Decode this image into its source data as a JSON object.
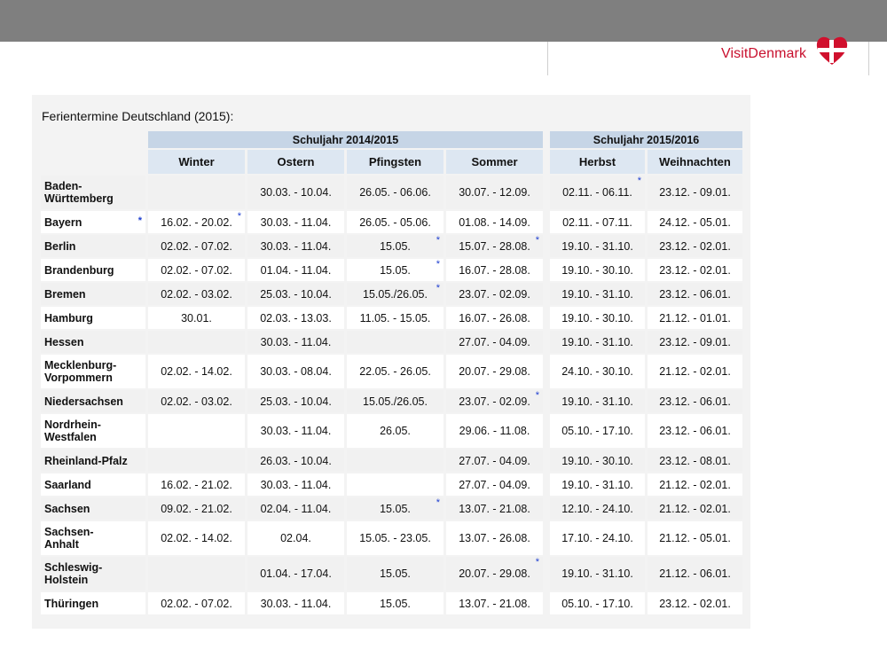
{
  "brand": {
    "name": "VisitDenmark"
  },
  "title": "Ferientermine Deutschland (2015):",
  "year_headers": [
    "Schuljahr 2014/2015",
    "Schuljahr 2015/2016"
  ],
  "columns": [
    "Winter",
    "Ostern",
    "Pfingsten",
    "Sommer",
    "Herbst",
    "Weihnachten"
  ],
  "rows": [
    {
      "state": "Baden-\nWürttemberg",
      "h": 38,
      "cells": [
        "",
        "30.03. - 10.04.",
        "26.05. - 06.06.",
        "30.07. - 12.09.",
        "02.11. - 06.11.",
        "23.12. - 09.01."
      ],
      "stars": [
        false,
        false,
        false,
        false,
        true,
        false
      ]
    },
    {
      "state": "Bayern",
      "h": 25,
      "state_star": true,
      "cells": [
        "16.02. - 20.02.",
        "30.03. - 11.04.",
        "26.05. - 05.06.",
        "01.08. - 14.09.",
        "02.11. - 07.11.",
        "24.12. - 05.01."
      ],
      "stars": [
        true,
        false,
        false,
        false,
        false,
        false
      ]
    },
    {
      "state": "Berlin",
      "h": 25,
      "cells": [
        "02.02. - 07.02.",
        "30.03. - 11.04.",
        "15.05.",
        "15.07. - 28.08.",
        "19.10. - 31.10.",
        "23.12. - 02.01."
      ],
      "stars": [
        false,
        false,
        true,
        true,
        false,
        false
      ]
    },
    {
      "state": "Brandenburg",
      "h": 25,
      "cells": [
        "02.02. - 07.02.",
        "01.04. - 11.04.",
        "15.05.",
        "16.07. - 28.08.",
        "19.10. - 30.10.",
        "23.12. - 02.01."
      ],
      "stars": [
        false,
        false,
        true,
        false,
        false,
        false
      ]
    },
    {
      "state": "Bremen",
      "h": 25,
      "cells": [
        "02.02. - 03.02.",
        "25.03. - 10.04.",
        "15.05./26.05.",
        "23.07. - 02.09.",
        "19.10. - 31.10.",
        "23.12. - 06.01."
      ],
      "stars": [
        false,
        false,
        true,
        false,
        false,
        false
      ]
    },
    {
      "state": "Hamburg",
      "h": 25,
      "cells": [
        "30.01.",
        "02.03. - 13.03.",
        "11.05. - 15.05.",
        "16.07. - 26.08.",
        "19.10. - 30.10.",
        "21.12. - 01.01."
      ],
      "stars": [
        false,
        false,
        false,
        false,
        false,
        false
      ]
    },
    {
      "state": "Hessen",
      "h": 25,
      "cells": [
        "",
        "30.03. - 11.04.",
        "",
        "27.07. - 04.09.",
        "19.10. - 31.10.",
        "23.12. - 09.01."
      ],
      "stars": [
        false,
        false,
        false,
        false,
        false,
        false
      ]
    },
    {
      "state": "Mecklenburg-\nVorpommern",
      "h": 38,
      "cells": [
        "02.02. - 14.02.",
        "30.03. - 08.04.",
        "22.05. - 26.05.",
        "20.07. - 29.08.",
        "24.10. - 30.10.",
        "21.12. - 02.01."
      ],
      "stars": [
        false,
        false,
        false,
        false,
        false,
        false
      ]
    },
    {
      "state": "Niedersachsen",
      "h": 25,
      "cells": [
        "02.02. - 03.02.",
        "25.03. - 10.04.",
        "15.05./26.05.",
        "23.07. - 02.09.",
        "19.10. - 31.10.",
        "23.12. - 06.01."
      ],
      "stars": [
        false,
        false,
        false,
        true,
        false,
        false
      ]
    },
    {
      "state": "Nordrhein-\nWestfalen",
      "h": 38,
      "cells": [
        "",
        "30.03. - 11.04.",
        "26.05.",
        "29.06. - 11.08.",
        "05.10. - 17.10.",
        "23.12. - 06.01."
      ],
      "stars": [
        false,
        false,
        false,
        false,
        false,
        false
      ]
    },
    {
      "state": "Rheinland-Pfalz",
      "h": 25,
      "cells": [
        "",
        "26.03. - 10.04.",
        "",
        "27.07. - 04.09.",
        "19.10. - 30.10.",
        "23.12. - 08.01."
      ],
      "stars": [
        false,
        false,
        false,
        false,
        false,
        false
      ]
    },
    {
      "state": "Saarland",
      "h": 25,
      "cells": [
        "16.02. - 21.02.",
        "30.03. - 11.04.",
        "",
        "27.07. - 04.09.",
        "19.10. - 31.10.",
        "21.12. - 02.01."
      ],
      "stars": [
        false,
        false,
        false,
        false,
        false,
        false
      ]
    },
    {
      "state": "Sachsen",
      "h": 25,
      "cells": [
        "09.02. - 21.02.",
        "02.04. - 11.04.",
        "15.05.",
        "13.07. - 21.08.",
        "12.10. - 24.10.",
        "21.12. - 02.01."
      ],
      "stars": [
        false,
        false,
        true,
        false,
        false,
        false
      ]
    },
    {
      "state": "Sachsen-\nAnhalt",
      "h": 38,
      "cells": [
        "02.02. - 14.02.",
        "02.04.",
        "15.05. - 23.05.",
        "13.07. - 26.08.",
        "17.10. - 24.10.",
        "21.12. - 05.01."
      ],
      "stars": [
        false,
        false,
        false,
        false,
        false,
        false
      ]
    },
    {
      "state": "Schleswig-\nHolstein",
      "h": 38,
      "cells": [
        "",
        "01.04. - 17.04.",
        "15.05.",
        "20.07. - 29.08.",
        "19.10. - 31.10.",
        "21.12. - 06.01."
      ],
      "stars": [
        false,
        false,
        false,
        true,
        false,
        false
      ]
    },
    {
      "state": "Thüringen",
      "h": 25,
      "cells": [
        "02.02. - 07.02.",
        "30.03. - 11.04.",
        "15.05.",
        "13.07. - 21.08.",
        "05.10. - 17.10.",
        "23.12. - 02.01."
      ],
      "stars": [
        false,
        false,
        false,
        false,
        false,
        false
      ]
    }
  ]
}
